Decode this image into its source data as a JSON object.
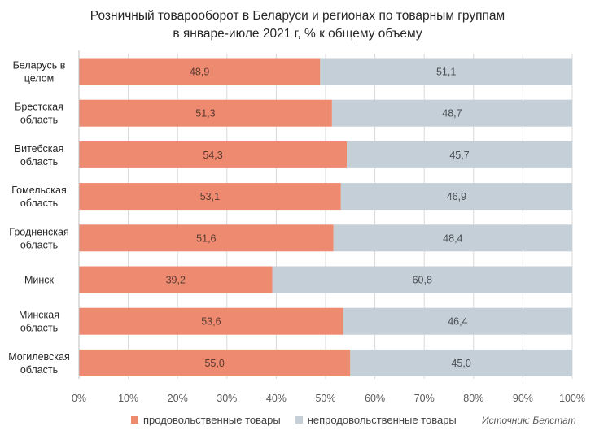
{
  "chart_data": {
    "type": "bar",
    "orientation": "horizontal",
    "stacked": true,
    "title": [
      "Розничный товарооборот в Беларуси и регионах по товарным группам",
      "в январе-июле 2021 г, % к общему объему"
    ],
    "categories": [
      [
        "Беларусь в",
        "целом"
      ],
      [
        "Брестская",
        "область"
      ],
      [
        "Витебская",
        "область"
      ],
      [
        "Гомельская",
        "область"
      ],
      [
        "Гродненская",
        "область"
      ],
      [
        "Минск"
      ],
      [
        "Минская",
        "область"
      ],
      [
        "Могилевская",
        "область"
      ]
    ],
    "series": [
      {
        "name": "продовольственные товары",
        "color": "#ED8A70",
        "values": [
          48.9,
          51.3,
          54.3,
          53.1,
          51.6,
          39.2,
          53.6,
          55.0
        ],
        "labels": [
          "48,9",
          "51,3",
          "54,3",
          "53,1",
          "51,6",
          "39,2",
          "53,6",
          "55,0"
        ]
      },
      {
        "name": "непродовольственные товары",
        "color": "#C5CFD7",
        "values": [
          51.1,
          48.7,
          45.7,
          46.9,
          48.4,
          60.8,
          46.4,
          45.0
        ],
        "labels": [
          "51,1",
          "48,7",
          "45,7",
          "46,9",
          "48,4",
          "60,8",
          "46,4",
          "45,0"
        ]
      }
    ],
    "xlim": [
      0,
      100
    ],
    "xticks": [
      "0%",
      "10%",
      "20%",
      "30%",
      "40%",
      "50%",
      "60%",
      "70%",
      "80%",
      "90%",
      "100%"
    ],
    "grid": true,
    "legend_position": "bottom"
  },
  "source": "Источник: Белстат"
}
